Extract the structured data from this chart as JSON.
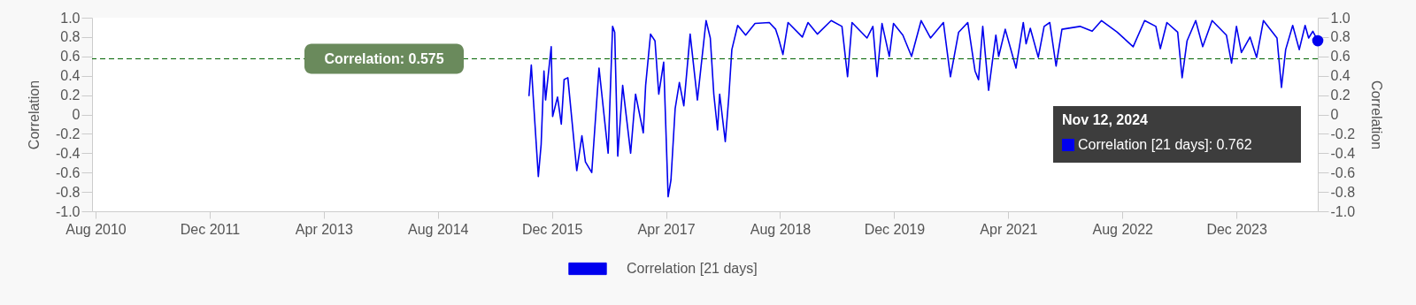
{
  "chart_data": {
    "type": "line",
    "xlabel": null,
    "ylabel": "Correlation",
    "y2label": "Correlation",
    "xlim": [
      "2010-07-17",
      "2024-11-12"
    ],
    "xticks": [
      {
        "value": "2010-08-01",
        "label": "Aug 2010"
      },
      {
        "value": "2011-12-01",
        "label": "Dec 2011"
      },
      {
        "value": "2013-04-01",
        "label": "Apr 2013"
      },
      {
        "value": "2014-08-01",
        "label": "Aug 2014"
      },
      {
        "value": "2015-12-01",
        "label": "Dec 2015"
      },
      {
        "value": "2017-04-01",
        "label": "Apr 2017"
      },
      {
        "value": "2018-08-01",
        "label": "Aug 2018"
      },
      {
        "value": "2019-12-01",
        "label": "Dec 2019"
      },
      {
        "value": "2021-04-01",
        "label": "Apr 2021"
      },
      {
        "value": "2022-08-01",
        "label": "Aug 2022"
      },
      {
        "value": "2023-12-01",
        "label": "Dec 2023"
      }
    ],
    "ylim": [
      -1.0,
      1.0
    ],
    "yticks": [
      {
        "value": 1.0,
        "label": "1.0"
      },
      0.8,
      0.6,
      0.4,
      0.2,
      0,
      -0.2,
      -0.4,
      -0.6,
      -0.8,
      {
        "value": -1.0,
        "label": "-1.0"
      }
    ],
    "y2lim": [
      -1.0,
      1.0
    ],
    "y2ticks": [
      {
        "value": 1.0,
        "label": "1.0"
      },
      0.8,
      0.6,
      0.4,
      0.2,
      0,
      -0.2,
      -0.4,
      -0.6,
      -0.8,
      {
        "value": -1.0,
        "label": "-1.0"
      }
    ],
    "grid": false,
    "legend": "bottom",
    "marker": "none",
    "line_style": "solid",
    "ref_lines": [
      {
        "axis": "y",
        "value": 0.575,
        "label": "Correlation: 0.575",
        "color": "#006400",
        "line_style": "dashed"
      }
    ],
    "annotations": [
      "Nov 12, 2024",
      "Correlation [21 days]: 0.762"
    ],
    "series": [
      {
        "name": "Correlation [21 days]",
        "color": "#0000ee",
        "x": [
          "2015-08-25",
          "2015-09-04",
          "2015-09-13",
          "2015-10-04",
          "2015-10-16",
          "2015-10-28",
          "2015-11-04",
          "2015-11-28",
          "2015-12-04",
          "2015-12-25",
          "2016-01-10",
          "2016-01-22",
          "2016-02-07",
          "2016-03-16",
          "2016-04-07",
          "2016-04-22",
          "2016-05-19",
          "2016-06-19",
          "2016-07-01",
          "2016-07-28",
          "2016-08-16",
          "2016-08-25",
          "2016-09-07",
          "2016-09-28",
          "2016-10-16",
          "2016-11-01",
          "2016-11-22",
          "2016-12-25",
          "2017-01-04",
          "2017-01-25",
          "2017-02-13",
          "2017-03-01",
          "2017-03-22",
          "2017-04-10",
          "2017-04-22",
          "2017-05-10",
          "2017-05-28",
          "2017-06-16",
          "2017-07-13",
          "2017-08-13",
          "2017-09-19",
          "2017-10-07",
          "2017-10-22",
          "2017-11-07",
          "2017-11-16",
          "2017-12-10",
          "2017-12-25",
          "2018-01-07",
          "2018-02-01",
          "2018-03-07",
          "2018-04-16",
          "2018-06-16",
          "2018-07-13",
          "2018-07-25",
          "2018-08-13",
          "2018-09-04",
          "2018-11-04",
          "2018-11-28",
          "2019-01-07",
          "2019-03-07",
          "2019-04-22",
          "2019-05-16",
          "2019-06-04",
          "2019-08-07",
          "2019-09-01",
          "2019-09-19",
          "2019-10-10",
          "2019-11-10",
          "2019-11-28",
          "2020-01-07",
          "2020-02-13",
          "2020-03-25",
          "2020-05-04",
          "2020-06-28",
          "2020-07-28",
          "2020-09-01",
          "2020-10-10",
          "2020-11-10",
          "2020-11-25",
          "2020-12-13",
          "2021-01-07",
          "2021-02-07",
          "2021-02-19",
          "2021-03-19",
          "2021-05-04",
          "2021-06-04",
          "2021-06-16",
          "2021-07-04",
          "2021-08-07",
          "2021-09-01",
          "2021-09-25",
          "2021-10-22",
          "2021-11-16",
          "2022-02-01",
          "2022-03-25",
          "2022-05-04",
          "2022-07-10",
          "2022-09-16",
          "2022-11-04",
          "2022-12-22",
          "2023-01-10",
          "2023-02-07",
          "2023-03-25",
          "2023-04-13",
          "2023-05-04",
          "2023-06-10",
          "2023-07-10",
          "2023-08-19",
          "2023-10-19",
          "2023-11-10",
          "2023-12-01",
          "2023-12-22",
          "2024-01-28",
          "2024-02-25",
          "2024-03-25",
          "2024-05-22",
          "2024-06-10",
          "2024-06-28",
          "2024-07-28",
          "2024-08-25",
          "2024-09-19",
          "2024-10-04",
          "2024-10-22",
          "2024-11-12"
        ],
        "values": [
          0.19,
          0.51,
          0.15,
          -0.64,
          -0.31,
          0.45,
          0.15,
          0.7,
          -0.02,
          0.18,
          -0.1,
          0.36,
          0.38,
          -0.58,
          -0.22,
          -0.49,
          -0.6,
          0.48,
          0.21,
          -0.4,
          0.91,
          0.85,
          -0.43,
          0.3,
          -0.07,
          -0.4,
          0.21,
          -0.19,
          0.3,
          0.83,
          0.76,
          0.21,
          0.54,
          -0.85,
          -0.68,
          0.06,
          0.33,
          0.09,
          0.83,
          0.15,
          0.97,
          0.79,
          0.21,
          -0.16,
          0.21,
          -0.28,
          0.18,
          0.67,
          0.92,
          0.82,
          0.94,
          0.95,
          0.88,
          0.79,
          0.62,
          0.95,
          0.8,
          0.95,
          0.83,
          0.97,
          0.91,
          0.39,
          0.95,
          0.79,
          0.91,
          0.39,
          0.94,
          0.6,
          0.94,
          0.82,
          0.6,
          0.97,
          0.79,
          0.95,
          0.39,
          0.85,
          0.95,
          0.45,
          0.36,
          0.91,
          0.25,
          0.82,
          0.6,
          0.88,
          0.48,
          0.95,
          0.73,
          0.89,
          0.59,
          0.91,
          0.95,
          0.5,
          0.88,
          0.91,
          0.86,
          0.97,
          0.85,
          0.7,
          0.97,
          0.91,
          0.68,
          0.95,
          0.85,
          0.38,
          0.76,
          0.97,
          0.7,
          0.97,
          0.82,
          0.53,
          0.91,
          0.64,
          0.8,
          0.59,
          0.97,
          0.79,
          0.28,
          0.67,
          0.92,
          0.67,
          0.92,
          0.79,
          0.86,
          0.762
        ]
      }
    ]
  }
}
